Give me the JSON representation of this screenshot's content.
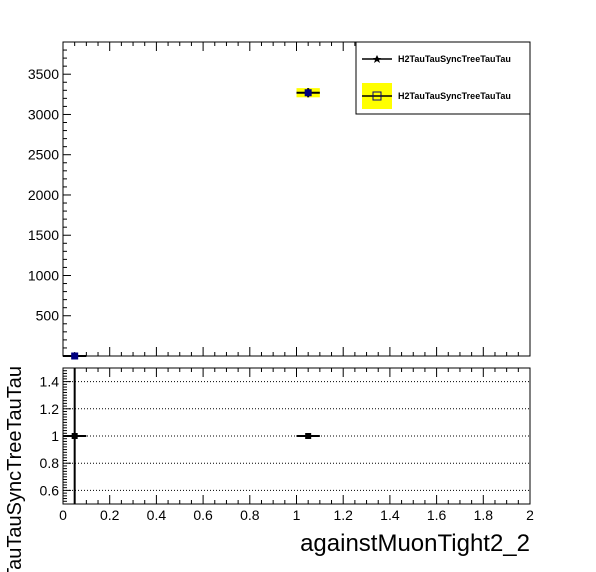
{
  "chart_data": [
    {
      "type": "scatter",
      "panel": "top",
      "title": "",
      "xlabel": "",
      "ylabel": "",
      "xlim": [
        0,
        2
      ],
      "ylim": [
        0,
        3900
      ],
      "yticks": [
        500,
        1000,
        1500,
        2000,
        2500,
        3000,
        3500
      ],
      "grid": false,
      "legend": {
        "placement": "top-right",
        "entries": [
          {
            "label": "H2TauTauSyncTreeTauTau",
            "marker": "filled-star-line",
            "color": "#000000"
          },
          {
            "label": "H2TauTauSyncTreeTauTau",
            "marker": "open-square-yellow-box",
            "color": "#000080",
            "fill": "#ffff00"
          }
        ]
      },
      "series": [
        {
          "name": "H2TauTauSyncTreeTauTau",
          "style": "points",
          "color": "#000000",
          "points": [
            {
              "x": 0.05,
              "y": 0,
              "xerr": 0.05,
              "yerr": 0
            },
            {
              "x": 1.05,
              "y": 3270,
              "xerr": 0.05,
              "yerr": 57
            }
          ]
        },
        {
          "name": "H2TauTauSyncTreeTauTau",
          "style": "box",
          "color": "#000080",
          "fill": "#ffff00",
          "points": [
            {
              "x": 0.05,
              "y": 0,
              "xerr": 0.05,
              "yerr": 0
            },
            {
              "x": 1.05,
              "y": 3270,
              "xerr": 0.05,
              "yerr": 57
            }
          ]
        }
      ]
    },
    {
      "type": "scatter",
      "panel": "ratio",
      "xlabel": "againstMuonTight2_2",
      "ylabel": "TauTauSyncTreeTauTau",
      "xlim": [
        0,
        2
      ],
      "ylim": [
        0.5,
        1.5
      ],
      "xticks": [
        "0",
        "0.2",
        "0.4",
        "0.6",
        "0.8",
        "1",
        "1.2",
        "1.4",
        "1.6",
        "1.8",
        "2"
      ],
      "yticks": [
        "0.6",
        "0.8",
        "1",
        "1.2",
        "1.4"
      ],
      "grid": "horizontal-dotted",
      "points": [
        {
          "x": 0.05,
          "y": 1,
          "xerr": 0.05,
          "yerr": 1.0
        },
        {
          "x": 1.05,
          "y": 1,
          "xerr": 0.05,
          "yerr": 0.02
        }
      ]
    }
  ]
}
